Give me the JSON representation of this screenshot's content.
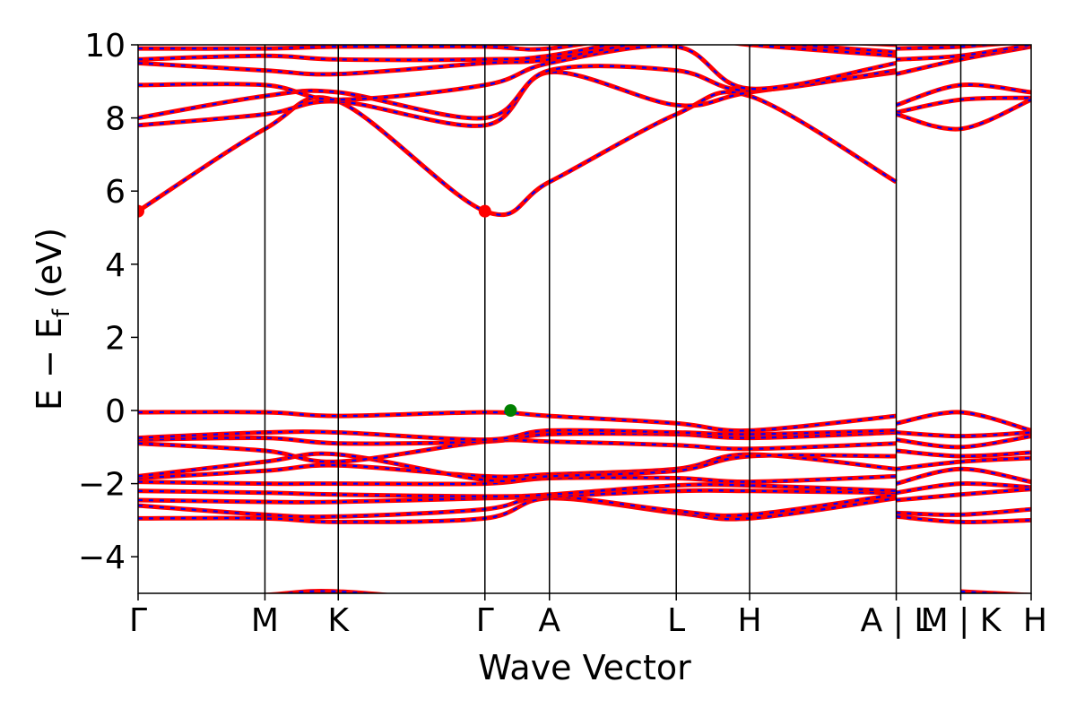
{
  "chart_data": {
    "type": "line",
    "xlabel": "Wave Vector",
    "ylabel": "E − E",
    "ylabel_subscript": "f",
    "ylabel_unit": " (eV)",
    "ylim": [
      -5,
      10
    ],
    "xlim": [
      0,
      6.09
    ],
    "y_ticks": [
      -4,
      -2,
      0,
      2,
      4,
      6,
      8,
      10
    ],
    "y_tick_labels": [
      "−4",
      "−2",
      "0",
      "2",
      "4",
      "6",
      "8",
      "10"
    ],
    "high_symmetry_points": [
      {
        "label": "Γ",
        "x": 0.0
      },
      {
        "label": "M",
        "x": 0.865
      },
      {
        "label": "K",
        "x": 1.365
      },
      {
        "label": "Γ",
        "x": 2.365
      },
      {
        "label": "A",
        "x": 2.805
      },
      {
        "label": "L",
        "x": 3.67
      },
      {
        "label": "H",
        "x": 4.17
      },
      {
        "label": "A | L",
        "x": 5.17
      },
      {
        "label": "M | K",
        "x": 5.61
      },
      {
        "label": "H",
        "x": 6.09
      }
    ],
    "series_colors": {
      "spin_up": "#ff0000",
      "spin_down": "#0000ff"
    },
    "markers": [
      {
        "kind": "cbm",
        "color": "#ff0000",
        "x": 0.0,
        "y": 5.45
      },
      {
        "kind": "cbm",
        "color": "#ff0000",
        "x": 2.365,
        "y": 5.45
      },
      {
        "kind": "vbm",
        "color": "#008000",
        "x": 2.54,
        "y": 0.0
      }
    ],
    "bands": [
      {
        "x": [
          0,
          0.865,
          1.365,
          2.365,
          2.805,
          3.67,
          4.17,
          5.17
        ],
        "y": [
          -2.95,
          -2.95,
          -3.05,
          -2.95,
          -2.4,
          -2.8,
          -2.95,
          -2.4
        ]
      },
      {
        "x": [
          0,
          0.865,
          1.365,
          2.365,
          2.805,
          3.67,
          4.17,
          5.17
        ],
        "y": [
          -2.6,
          -2.85,
          -2.9,
          -2.7,
          -2.35,
          -2.75,
          -2.85,
          -2.3
        ]
      },
      {
        "x": [
          0,
          0.865,
          1.365,
          2.365,
          2.805,
          3.67,
          4.17,
          5.17
        ],
        "y": [
          -2.45,
          -2.5,
          -2.5,
          -2.4,
          -2.35,
          -2.2,
          -2.2,
          -2.25
        ]
      },
      {
        "x": [
          0,
          0.865,
          1.365,
          2.365,
          2.805,
          3.67,
          4.17,
          5.17
        ],
        "y": [
          -2.2,
          -2.25,
          -2.3,
          -2.35,
          -2.3,
          -2.05,
          -2.05,
          -2.2
        ]
      },
      {
        "x": [
          0,
          0.865,
          1.365,
          2.365,
          2.805,
          3.67,
          4.17,
          5.17
        ],
        "y": [
          -1.95,
          -2.0,
          -2.0,
          -2.0,
          -1.85,
          -1.85,
          -1.95,
          -1.8
        ]
      },
      {
        "x": [
          0,
          0.865,
          1.365,
          2.365,
          2.805,
          3.67,
          4.17,
          5.17
        ],
        "y": [
          -1.85,
          -1.65,
          -1.5,
          -1.8,
          -1.75,
          -1.6,
          -1.2,
          -1.6
        ]
      },
      {
        "x": [
          0,
          0.865,
          1.365,
          2.365,
          2.805,
          3.67,
          4.17,
          5.17
        ],
        "y": [
          -1.8,
          -1.4,
          -1.2,
          -1.9,
          -1.8,
          -1.65,
          -1.25,
          -1.25
        ]
      },
      {
        "x": [
          0,
          0.865,
          1.365,
          2.365,
          2.805,
          3.67,
          4.17,
          5.17
        ],
        "y": [
          -0.9,
          -1.1,
          -1.4,
          -0.85,
          -0.85,
          -0.95,
          -1.05,
          -0.9
        ]
      },
      {
        "x": [
          0,
          0.865,
          1.365,
          2.365,
          2.805,
          3.67,
          4.17,
          5.17
        ],
        "y": [
          -0.8,
          -0.75,
          -0.9,
          -0.85,
          -0.65,
          -0.65,
          -0.75,
          -0.6
        ]
      },
      {
        "x": [
          0,
          0.865,
          1.365,
          2.365,
          2.805,
          3.67,
          4.17,
          5.17
        ],
        "y": [
          -0.75,
          -0.6,
          -0.6,
          -0.8,
          -0.55,
          -0.6,
          -0.65,
          -0.55
        ]
      },
      {
        "x": [
          0,
          0.865,
          1.365,
          2.365,
          2.805,
          3.67,
          4.17,
          5.17
        ],
        "y": [
          -0.05,
          -0.05,
          -0.15,
          -0.05,
          -0.15,
          -0.35,
          -0.55,
          -0.15
        ]
      },
      {
        "x": [
          0,
          0.865,
          1.365,
          2.365,
          2.805,
          3.67,
          4.17,
          5.17
        ],
        "y": [
          5.45,
          7.7,
          8.45,
          5.45,
          6.25,
          8.1,
          8.6,
          6.25
        ]
      },
      {
        "x": [
          0,
          0.865,
          1.365,
          2.365,
          2.805,
          3.67,
          4.17,
          5.17
        ],
        "y": [
          7.8,
          8.1,
          8.45,
          7.8,
          9.25,
          8.35,
          8.7,
          9.25
        ]
      },
      {
        "x": [
          0,
          0.865,
          1.365,
          2.365,
          2.805,
          3.67,
          4.17,
          5.17
        ],
        "y": [
          8.0,
          8.6,
          8.7,
          8.0,
          9.3,
          9.3,
          8.75,
          9.3
        ]
      },
      {
        "x": [
          0,
          0.865,
          1.365,
          2.365,
          2.805,
          3.67,
          4.17,
          5.17
        ],
        "y": [
          8.9,
          8.9,
          8.5,
          8.9,
          9.5,
          9.95,
          8.8,
          9.5
        ]
      },
      {
        "x": [
          0,
          0.865,
          1.365,
          2.365,
          2.805,
          3.67,
          4.17,
          5.17
        ],
        "y": [
          9.5,
          9.3,
          9.2,
          9.5,
          9.6,
          10.2,
          10.0,
          9.7
        ]
      },
      {
        "x": [
          0,
          0.865,
          1.365,
          2.365,
          2.805,
          3.67,
          4.17,
          5.17
        ],
        "y": [
          9.6,
          9.7,
          9.6,
          9.6,
          9.7,
          10.3,
          10.1,
          9.8
        ]
      },
      {
        "x": [
          0,
          0.865,
          1.365,
          2.365,
          2.805,
          3.67,
          4.17,
          5.17
        ],
        "y": [
          9.9,
          9.9,
          9.95,
          9.95,
          9.9,
          10.4,
          10.2,
          10.0
        ]
      },
      {
        "x": [
          0,
          0.865,
          1.365,
          2.365
        ],
        "y": [
          -5.3,
          -5.05,
          -4.95,
          -5.3
        ]
      },
      {
        "x": [
          5.17,
          5.61,
          6.09
        ],
        "y": [
          8.15,
          8.5,
          8.55
        ]
      },
      {
        "x": [
          5.17,
          5.61,
          6.09
        ],
        "y": [
          8.35,
          8.9,
          8.7
        ]
      },
      {
        "x": [
          5.17,
          5.61,
          6.09
        ],
        "y": [
          8.1,
          7.7,
          8.5
        ]
      },
      {
        "x": [
          5.17,
          5.61,
          6.09
        ],
        "y": [
          9.2,
          9.6,
          9.95
        ]
      },
      {
        "x": [
          5.17,
          5.61,
          6.09
        ],
        "y": [
          9.6,
          9.7,
          10.0
        ]
      },
      {
        "x": [
          5.17,
          5.61,
          6.09
        ],
        "y": [
          9.9,
          9.95,
          10.1
        ]
      },
      {
        "x": [
          5.17,
          5.61,
          6.09
        ],
        "y": [
          -0.35,
          -0.05,
          -0.55
        ]
      },
      {
        "x": [
          5.17,
          5.61,
          6.09
        ],
        "y": [
          -0.6,
          -0.7,
          -0.6
        ]
      },
      {
        "x": [
          5.17,
          5.61,
          6.09
        ],
        "y": [
          -0.8,
          -1.0,
          -0.7
        ]
      },
      {
        "x": [
          5.17,
          5.61,
          6.09
        ],
        "y": [
          -1.1,
          -1.25,
          -1.15
        ]
      },
      {
        "x": [
          5.17,
          5.61,
          6.09
        ],
        "y": [
          -1.6,
          -1.4,
          -1.3
        ]
      },
      {
        "x": [
          5.17,
          5.61,
          6.09
        ],
        "y": [
          -2.0,
          -1.6,
          -1.95
        ]
      },
      {
        "x": [
          5.17,
          5.61,
          6.09
        ],
        "y": [
          -2.25,
          -2.0,
          -2.1
        ]
      },
      {
        "x": [
          5.17,
          5.61,
          6.09
        ],
        "y": [
          -2.45,
          -2.3,
          -2.15
        ]
      },
      {
        "x": [
          5.17,
          5.61,
          6.09
        ],
        "y": [
          -2.8,
          -2.85,
          -2.7
        ]
      },
      {
        "x": [
          5.17,
          5.61,
          6.09
        ],
        "y": [
          -2.9,
          -3.05,
          -3.0
        ]
      },
      {
        "x": [
          5.61,
          6.09
        ],
        "y": [
          -4.95,
          -5.05
        ]
      }
    ]
  }
}
